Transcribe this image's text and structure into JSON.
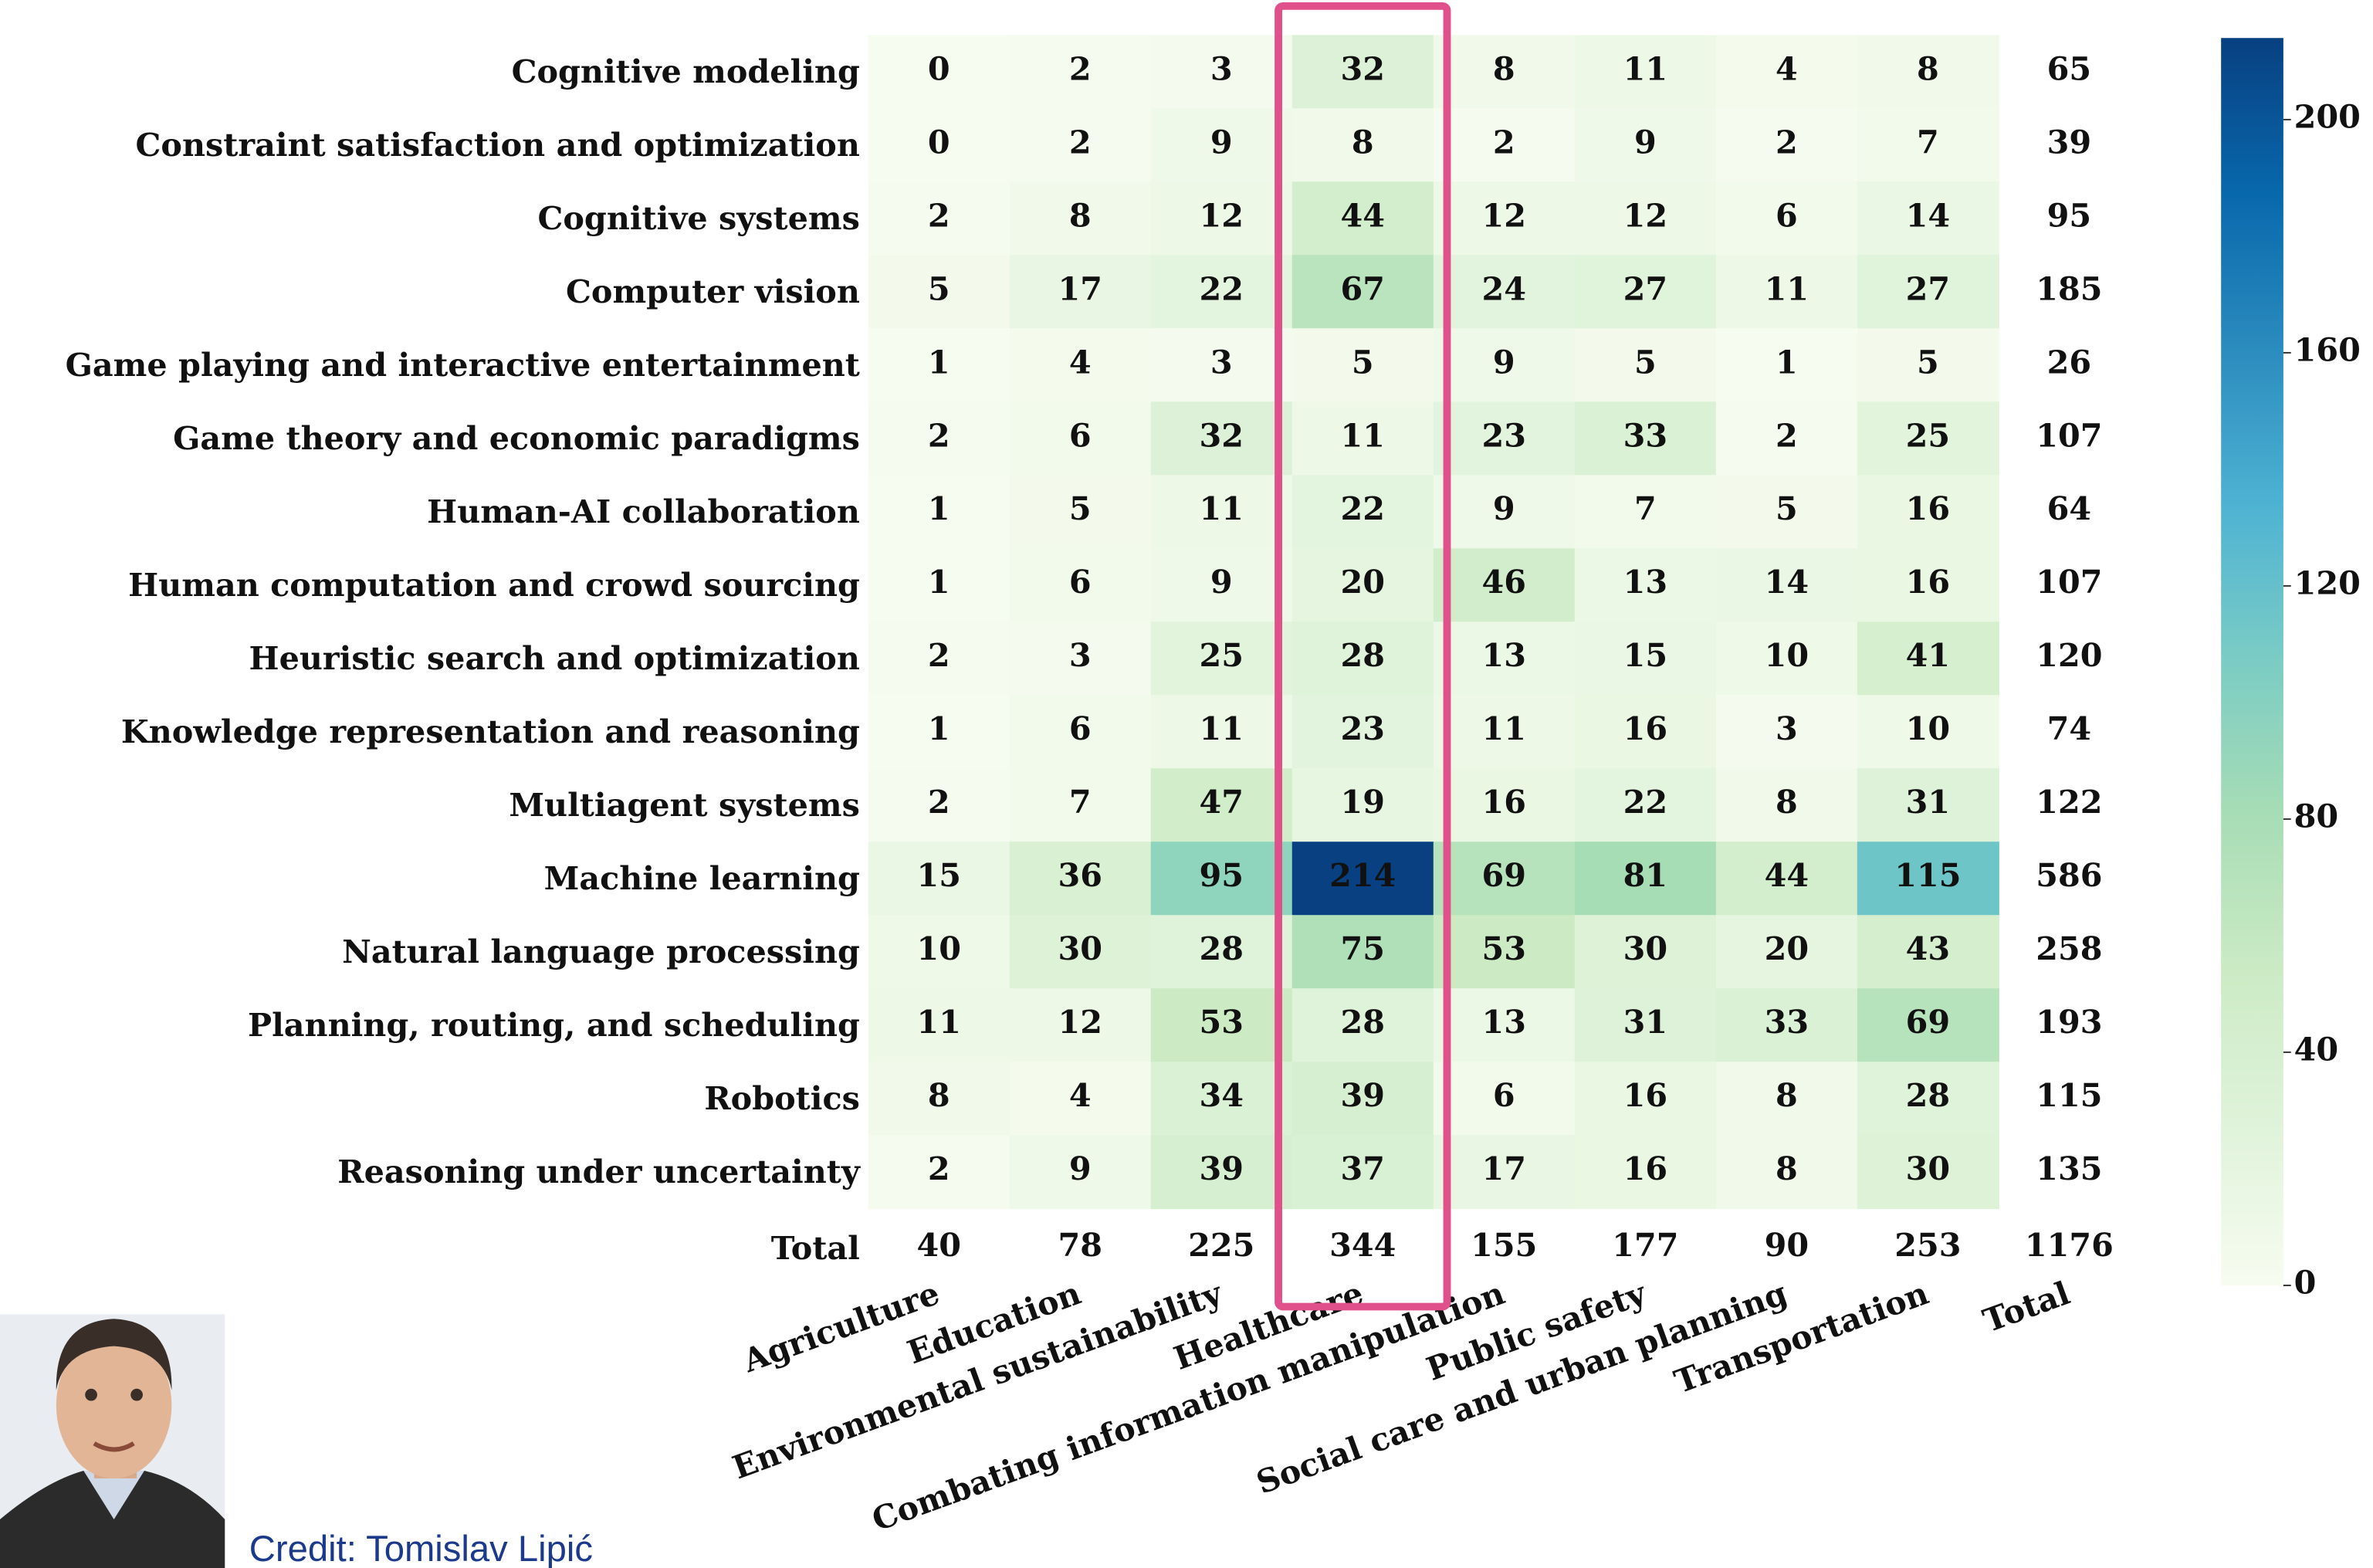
{
  "chart_data": {
    "type": "heatmap",
    "rows": [
      "Cognitive modeling",
      "Constraint satisfaction and optimization",
      "Cognitive systems",
      "Computer vision",
      "Game playing and interactive entertainment",
      "Game theory and economic paradigms",
      "Human-AI collaboration",
      "Human computation and crowd sourcing",
      "Heuristic search and optimization",
      "Knowledge representation and reasoning",
      "Multiagent systems",
      "Machine learning",
      "Natural language processing",
      "Planning, routing, and scheduling",
      "Robotics",
      "Reasoning under uncertainty"
    ],
    "columns": [
      "Agriculture",
      "Education",
      "Environmental sustainability",
      "Healthcare",
      "Combating information manipulation",
      "Public safety",
      "Social care and urban planning",
      "Transportation"
    ],
    "total_label": "Total",
    "values": [
      [
        0,
        2,
        3,
        32,
        8,
        11,
        4,
        8
      ],
      [
        0,
        2,
        9,
        8,
        2,
        9,
        2,
        7
      ],
      [
        2,
        8,
        12,
        44,
        12,
        12,
        6,
        14
      ],
      [
        5,
        17,
        22,
        67,
        24,
        27,
        11,
        27
      ],
      [
        1,
        4,
        3,
        5,
        9,
        5,
        1,
        5
      ],
      [
        2,
        6,
        32,
        11,
        23,
        33,
        2,
        25
      ],
      [
        1,
        5,
        11,
        22,
        9,
        7,
        5,
        16
      ],
      [
        1,
        6,
        9,
        20,
        46,
        13,
        14,
        16
      ],
      [
        2,
        3,
        25,
        28,
        13,
        15,
        10,
        41
      ],
      [
        1,
        6,
        11,
        23,
        11,
        16,
        3,
        10
      ],
      [
        2,
        7,
        47,
        19,
        16,
        22,
        8,
        31
      ],
      [
        15,
        36,
        95,
        214,
        69,
        81,
        44,
        115
      ],
      [
        10,
        30,
        28,
        75,
        53,
        30,
        20,
        43
      ],
      [
        11,
        12,
        53,
        28,
        13,
        31,
        33,
        69
      ],
      [
        8,
        4,
        34,
        39,
        6,
        16,
        8,
        28
      ],
      [
        2,
        9,
        39,
        37,
        17,
        16,
        8,
        30
      ]
    ],
    "row_totals": [
      65,
      39,
      95,
      185,
      26,
      107,
      64,
      107,
      120,
      74,
      122,
      586,
      258,
      193,
      115,
      135
    ],
    "column_totals": [
      40,
      78,
      225,
      344,
      155,
      177,
      90,
      253
    ],
    "grand_total": 1176,
    "colorbar": {
      "lim": [
        0,
        214
      ],
      "ticks": [
        0,
        40,
        80,
        120,
        160,
        200
      ]
    },
    "colormap": [
      "#f7fcf0",
      "#e0f3db",
      "#ccebc5",
      "#a8ddb5",
      "#7bccc4",
      "#4eb3d3",
      "#2b8cbe",
      "#0868ac",
      "#084081"
    ],
    "credit": "Credit: Tomislav Lipić"
  }
}
